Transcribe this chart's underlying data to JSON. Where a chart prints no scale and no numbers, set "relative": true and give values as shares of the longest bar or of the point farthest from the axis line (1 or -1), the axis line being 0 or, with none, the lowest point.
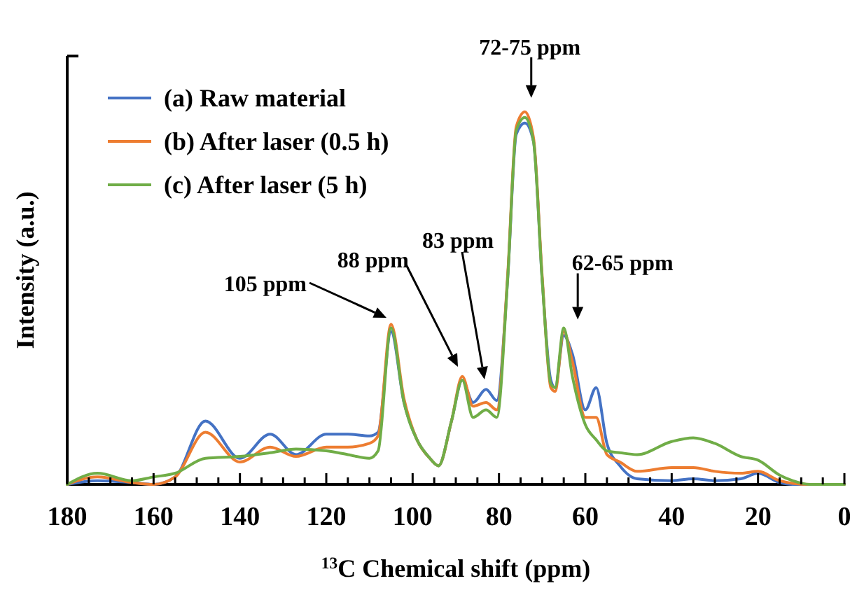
{
  "chart_data": {
    "type": "line",
    "relative": true,
    "xlabel": "$^{13}$C Chemical shift (ppm)",
    "ylabel": "Intensity (a.u.)",
    "legend": "top left",
    "marker": "none",
    "line_style": "solid",
    "grid": false,
    "tick_labels": "x",
    "xlim": [
      180,
      0
    ],
    "xticks": [
      180,
      {
        "value": 175,
        "label": null
      },
      {
        "value": 170,
        "label": null
      },
      {
        "value": 165,
        "label": null
      },
      160,
      {
        "value": 155,
        "label": null
      },
      {
        "value": 150,
        "label": null
      },
      {
        "value": 145,
        "label": null
      },
      140,
      {
        "value": 135,
        "label": null
      },
      {
        "value": 130,
        "label": null
      },
      {
        "value": 125,
        "label": null
      },
      120,
      {
        "value": 115,
        "label": null
      },
      {
        "value": 110,
        "label": null
      },
      {
        "value": 105,
        "label": null
      },
      100,
      {
        "value": 95,
        "label": null
      },
      {
        "value": 90,
        "label": null
      },
      {
        "value": 85,
        "label": null
      },
      80,
      {
        "value": 75,
        "label": null
      },
      {
        "value": 70,
        "label": null
      },
      {
        "value": 65,
        "label": null
      },
      60,
      {
        "value": 55,
        "label": null
      },
      {
        "value": 50,
        "label": null
      },
      {
        "value": 45,
        "label": null
      },
      40,
      {
        "value": 35,
        "label": null
      },
      {
        "value": 30,
        "label": null
      },
      {
        "value": 25,
        "label": null
      },
      20,
      {
        "value": 15,
        "label": null
      },
      {
        "value": 10,
        "label": null
      },
      {
        "value": 5,
        "label": null
      },
      0
    ],
    "x": [
      180,
      173,
      165,
      160,
      155,
      148,
      140,
      133,
      127,
      120,
      115,
      110,
      108,
      105,
      102,
      99,
      96,
      94,
      91,
      88.5,
      86,
      83,
      80.5,
      78,
      76,
      74,
      72,
      70,
      68,
      67,
      65,
      63,
      60,
      57.5,
      55,
      52,
      48,
      40,
      35,
      30,
      24,
      20,
      15,
      12,
      8,
      0
    ],
    "series": [
      {
        "name": "(a) Raw material",
        "color": "#4472c4",
        "values": [
          0,
          0.01,
          0.005,
          0,
          0.02,
          0.17,
          0.07,
          0.135,
          0.08,
          0.135,
          0.135,
          0.13,
          0.14,
          0.41,
          0.22,
          0.12,
          0.07,
          0.05,
          0.17,
          0.28,
          0.22,
          0.255,
          0.225,
          0.55,
          0.94,
          0.97,
          0.92,
          0.55,
          0.28,
          0.26,
          0.4,
          0.35,
          0.2,
          0.26,
          0.11,
          0.05,
          0.015,
          0.01,
          0.015,
          0.01,
          0.015,
          0.03,
          0.005,
          0,
          0,
          0
        ]
      },
      {
        "name": "(b) After laser (0.5 h)",
        "color": "#ed7d31",
        "values": [
          0,
          0.02,
          0.005,
          0,
          0.02,
          0.14,
          0.06,
          0.1,
          0.075,
          0.1,
          0.1,
          0.11,
          0.13,
          0.43,
          0.23,
          0.12,
          0.07,
          0.05,
          0.17,
          0.29,
          0.21,
          0.22,
          0.2,
          0.56,
          0.96,
          1.0,
          0.93,
          0.56,
          0.26,
          0.25,
          0.41,
          0.33,
          0.18,
          0.18,
          0.08,
          0.06,
          0.035,
          0.045,
          0.045,
          0.035,
          0.03,
          0.035,
          0.01,
          0.003,
          0,
          0
        ]
      },
      {
        "name": "(c) After laser (5 h)",
        "color": "#70ad47",
        "values": [
          0,
          0.03,
          0.01,
          0.02,
          0.03,
          0.07,
          0.075,
          0.085,
          0.095,
          0.09,
          0.08,
          0.07,
          0.09,
          0.42,
          0.22,
          0.12,
          0.07,
          0.05,
          0.17,
          0.28,
          0.18,
          0.2,
          0.18,
          0.55,
          0.95,
          0.985,
          0.92,
          0.55,
          0.27,
          0.26,
          0.42,
          0.29,
          0.16,
          0.12,
          0.09,
          0.085,
          0.08,
          0.115,
          0.125,
          0.11,
          0.075,
          0.065,
          0.025,
          0.01,
          0,
          0
        ]
      }
    ],
    "annotations": [
      "105 ppm",
      "88 ppm",
      "83 ppm",
      {
        "text": "72-75 ppm",
        "x": 73.5,
        "y": 1.0
      },
      {
        "text": "62-65 ppm",
        "x": 65,
        "y": 0.42
      }
    ]
  }
}
